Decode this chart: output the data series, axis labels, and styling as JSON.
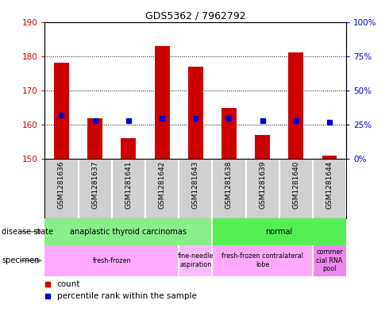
{
  "title": "GDS5362 / 7962792",
  "samples": [
    "GSM1281636",
    "GSM1281637",
    "GSM1281641",
    "GSM1281642",
    "GSM1281643",
    "GSM1281638",
    "GSM1281639",
    "GSM1281640",
    "GSM1281644"
  ],
  "counts": [
    178,
    162,
    156,
    183,
    177,
    165,
    157,
    181,
    151
  ],
  "percentile_ranks": [
    32,
    28,
    28,
    30,
    30,
    30,
    28,
    28,
    27
  ],
  "ylim_left": [
    150,
    190
  ],
  "ylim_right": [
    0,
    100
  ],
  "yticks_left": [
    150,
    160,
    170,
    180,
    190
  ],
  "yticks_right": [
    0,
    25,
    50,
    75,
    100
  ],
  "bar_color": "#cc0000",
  "marker_color": "#0000cc",
  "bar_bottom": 150,
  "disease_groups": [
    {
      "label": "anaplastic thyroid carcinomas",
      "start": 0,
      "end": 5,
      "color": "#88ee88"
    },
    {
      "label": "normal",
      "start": 5,
      "end": 9,
      "color": "#55ee55"
    }
  ],
  "specimen_groups": [
    {
      "label": "fresh-frozen",
      "start": 0,
      "end": 4,
      "color": "#ffaaff"
    },
    {
      "label": "fine-needle\naspiration",
      "start": 4,
      "end": 5,
      "color": "#ffbbff"
    },
    {
      "label": "fresh-frozen contralateral\nlobe",
      "start": 5,
      "end": 8,
      "color": "#ffaaff"
    },
    {
      "label": "commer\ncial RNA\npool",
      "start": 8,
      "end": 9,
      "color": "#ee88ee"
    }
  ],
  "legend_count_color": "#cc0000",
  "legend_percentile_color": "#0000cc",
  "left_label_color": "#cc0000",
  "right_label_color": "#0000cc",
  "sample_bg_color": "#d0d0d0",
  "sample_divider_color": "#ffffff",
  "bar_width": 0.45
}
